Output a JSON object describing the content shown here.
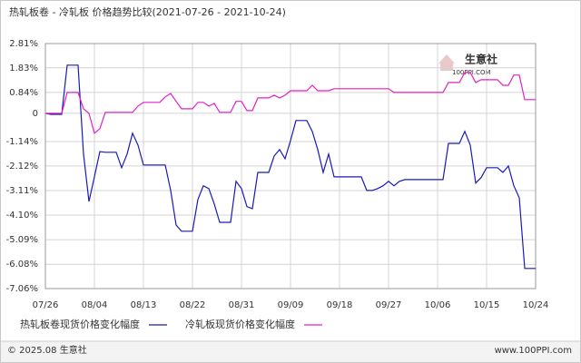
{
  "chart_data": {
    "type": "line",
    "title": "热轧板卷 - 冷轧板 价格趋势比较(2021-07-26 - 2021-10-24)",
    "watermark": [
      "生意社",
      "100PPI.COM"
    ],
    "footer": [
      "© 2025.08 生意社",
      "www.100PPI.com"
    ],
    "categories": [
      "07/26",
      null,
      null,
      null,
      null,
      null,
      null,
      null,
      null,
      "08/04",
      null,
      null,
      null,
      null,
      null,
      null,
      null,
      null,
      "08/13",
      null,
      null,
      null,
      null,
      null,
      null,
      null,
      null,
      "08/22",
      null,
      null,
      null,
      null,
      null,
      null,
      null,
      null,
      "08/31",
      null,
      null,
      null,
      null,
      null,
      null,
      null,
      null,
      "09/09",
      null,
      null,
      null,
      null,
      null,
      null,
      null,
      null,
      "09/18",
      null,
      null,
      null,
      null,
      null,
      null,
      null,
      null,
      "09/27",
      null,
      null,
      null,
      null,
      null,
      null,
      null,
      null,
      "10/06",
      null,
      null,
      null,
      null,
      null,
      null,
      null,
      null,
      "10/15",
      null,
      null,
      null,
      null,
      null,
      null,
      null,
      null,
      "10/24"
    ],
    "series": [
      {
        "name": "热轧板卷现货价格变化幅度",
        "color": "#1a1ab8",
        "values": [
          0,
          -0.04,
          -0.04,
          -0.04,
          1.94,
          1.94,
          1.94,
          -1.65,
          -3.55,
          -2.56,
          -1.54,
          -1.57,
          -1.57,
          -1.57,
          -2.19,
          -1.64,
          -0.8,
          -1.28,
          -2.08,
          -2.08,
          -2.08,
          -2.08,
          -2.08,
          -3.11,
          -4.5,
          -4.75,
          -4.75,
          -4.75,
          -3.47,
          -2.92,
          -3.03,
          -3.65,
          -4.39,
          -4.39,
          -4.39,
          -2.74,
          -3.03,
          -3.76,
          -3.84,
          -2.38,
          -2.38,
          -2.38,
          -1.72,
          -1.46,
          -1.83,
          -1.1,
          -0.29,
          -0.29,
          -0.29,
          -0.73,
          -1.46,
          -2.38,
          -1.64,
          -2.56,
          -2.56,
          -2.56,
          -2.56,
          -2.56,
          -2.56,
          -3.11,
          -3.11,
          -3.03,
          -2.92,
          -2.74,
          -2.92,
          -2.74,
          -2.67,
          -2.67,
          -2.67,
          -2.67,
          -2.67,
          -2.67,
          -2.67,
          -2.67,
          -1.21,
          -1.21,
          -1.21,
          -0.73,
          -1.28,
          -2.81,
          -2.59,
          -2.19,
          -2.19,
          -2.19,
          -2.38,
          -2.12,
          -2.92,
          -3.4,
          -6.25,
          -6.25,
          -6.25
        ]
      },
      {
        "name": "冷轧板现货价格变化幅度",
        "color": "#e020c8",
        "values": [
          0,
          0,
          0,
          0,
          0.84,
          0.84,
          0.84,
          0.18,
          0,
          -0.8,
          -0.62,
          0.04,
          0.04,
          0.04,
          0.04,
          0.04,
          0.04,
          0.29,
          0.44,
          0.44,
          0.44,
          0.44,
          0.66,
          0.8,
          0.48,
          0.18,
          0.18,
          0.18,
          0.44,
          0.44,
          0.29,
          0.4,
          0.04,
          0.04,
          0.04,
          0.48,
          0.48,
          0.11,
          0.11,
          0.62,
          0.62,
          0.62,
          0.73,
          0.62,
          0.73,
          0.91,
          0.91,
          0.91,
          0.91,
          1.13,
          0.91,
          0.91,
          0.91,
          0.99,
          0.99,
          0.99,
          0.99,
          0.99,
          0.99,
          0.99,
          0.99,
          0.99,
          0.99,
          0.99,
          0.84,
          0.84,
          0.84,
          0.84,
          0.84,
          0.84,
          0.84,
          0.84,
          0.84,
          0.84,
          1.24,
          1.24,
          1.24,
          1.64,
          1.64,
          1.24,
          1.35,
          1.35,
          1.35,
          1.35,
          1.13,
          1.13,
          1.54,
          1.54,
          0.55,
          0.55,
          0.55
        ]
      }
    ],
    "ylim": [
      -7.06,
      2.81
    ],
    "yticks": [
      {
        "value": 2.81,
        "label": "2.81%"
      },
      {
        "value": 1.83,
        "label": "1.83%"
      },
      {
        "value": 0.84,
        "label": "0.84%"
      },
      0,
      {
        "value": -1.14,
        "label": "-1.14%"
      },
      {
        "value": -2.12,
        "label": "-2.12%"
      },
      {
        "value": -3.11,
        "label": "-3.11%"
      },
      {
        "value": -4.1,
        "label": "-4.10%"
      },
      {
        "value": -5.09,
        "label": "-5.09%"
      },
      {
        "value": -6.08,
        "label": "-6.08%"
      },
      {
        "value": -7.06,
        "label": "-7.06%"
      }
    ],
    "grid": true
  }
}
